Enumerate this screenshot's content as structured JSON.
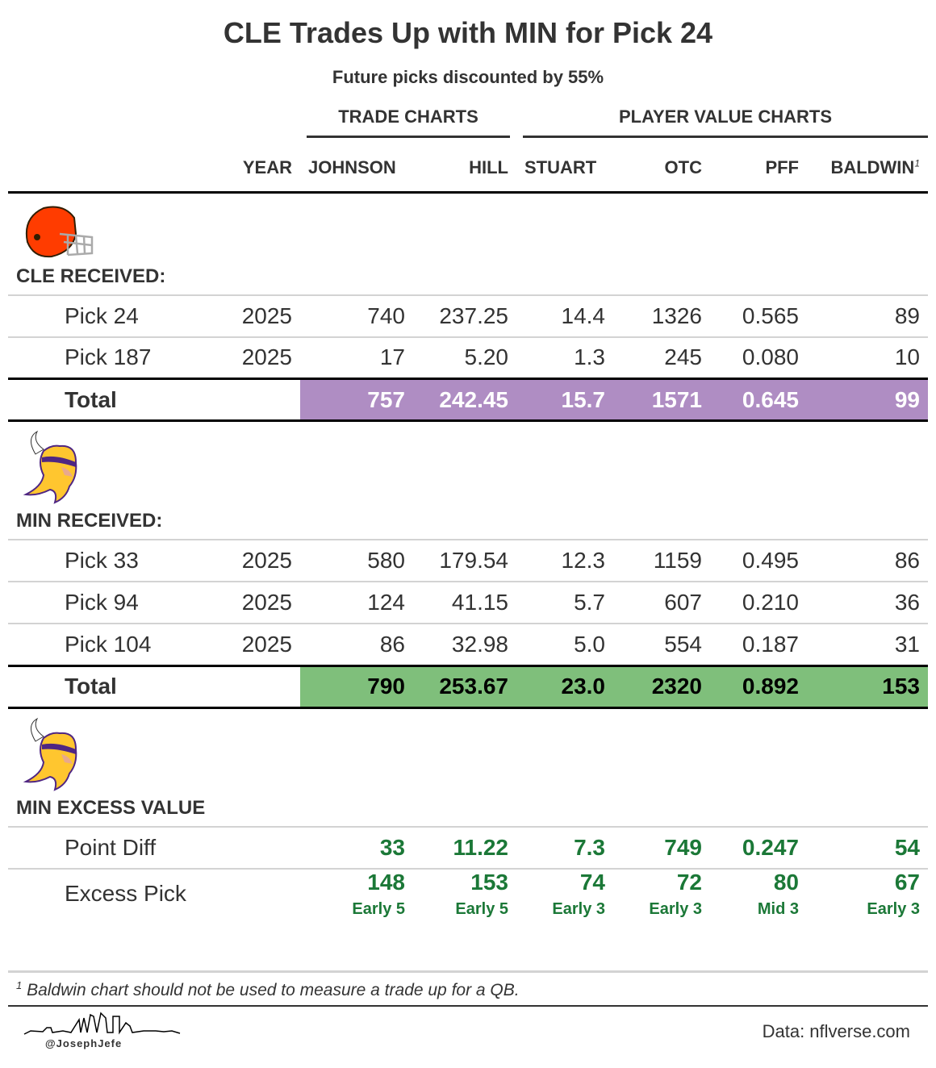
{
  "title": "CLE Trades Up with MIN for Pick 24",
  "subtitle": "Future picks discounted by 55%",
  "spanners": {
    "trade": "TRADE CHARTS",
    "player": "PLAYER VALUE CHARTS"
  },
  "columns": [
    "",
    "YEAR",
    "JOHNSON",
    "HILL",
    "STUART",
    "OTC",
    "PFF",
    "BALDWIN"
  ],
  "footnote_mark": "1",
  "colors": {
    "cle_total": "#AF8DC3",
    "min_total": "#7FBF7B",
    "excess_text": "#1B7837"
  },
  "chart_data": {
    "type": "table",
    "groups": [
      {
        "label": "CLE RECEIVED:",
        "team": "CLE",
        "rows": [
          [
            "Pick 24",
            "2025",
            "740",
            "237.25",
            "14.4",
            "1326",
            "0.565",
            "89"
          ],
          [
            "Pick 187",
            "2025",
            "17",
            "5.20",
            "1.3",
            "245",
            "0.080",
            "10"
          ]
        ],
        "total": [
          "Total",
          "",
          "757",
          "242.45",
          "15.7",
          "1571",
          "0.645",
          "99"
        ]
      },
      {
        "label": "MIN RECEIVED:",
        "team": "MIN",
        "rows": [
          [
            "Pick 33",
            "2025",
            "580",
            "179.54",
            "12.3",
            "1159",
            "0.495",
            "86"
          ],
          [
            "Pick 94",
            "2025",
            "124",
            "41.15",
            "5.7",
            "607",
            "0.210",
            "36"
          ],
          [
            "Pick 104",
            "2025",
            "86",
            "32.98",
            "5.0",
            "554",
            "0.187",
            "31"
          ]
        ],
        "total": [
          "Total",
          "",
          "790",
          "253.67",
          "23.0",
          "2320",
          "0.892",
          "153"
        ]
      },
      {
        "label": "MIN EXCESS VALUE",
        "team": "MIN",
        "rows": [
          [
            "Point Diff",
            "",
            "33",
            "11.22",
            "7.3",
            "749",
            "0.247",
            "54"
          ],
          [
            "Excess Pick",
            "",
            "148",
            "153",
            "74",
            "72",
            "80",
            "67"
          ]
        ],
        "excess_sub": [
          "",
          "",
          "Early 5",
          "Early 5",
          "Early 3",
          "Early 3",
          "Mid 3",
          "Early 3"
        ]
      }
    ]
  },
  "footnote": "Baldwin chart should not be used to measure a trade up for a QB.",
  "credit": "Data: nflverse.com",
  "handle": "@JosephJefe"
}
